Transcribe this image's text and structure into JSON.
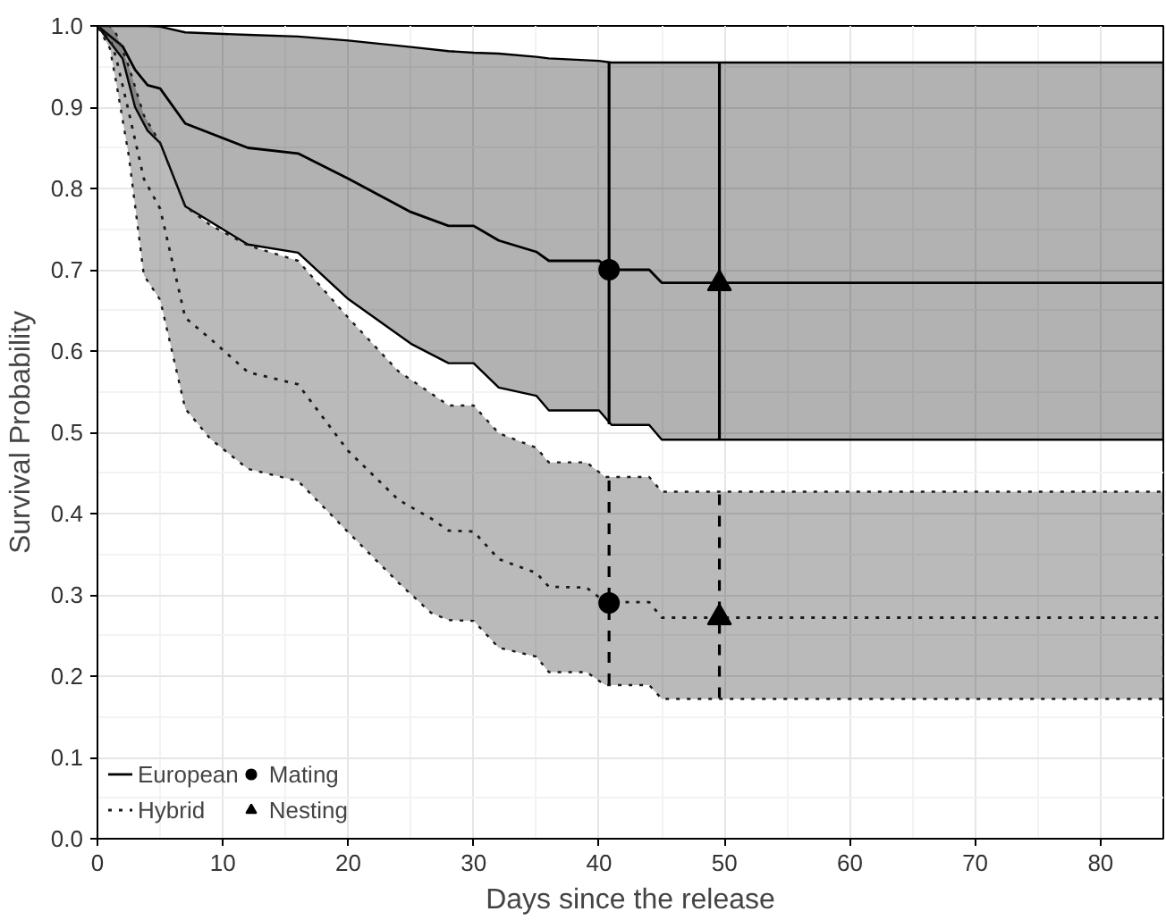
{
  "chart_data": {
    "type": "line",
    "xlabel": "Days since the release",
    "ylabel": "Survival Probability",
    "xlim": [
      0,
      85
    ],
    "ylim": [
      0,
      1.0
    ],
    "xticks": [
      0,
      10,
      20,
      30,
      40,
      50,
      60,
      70,
      80
    ],
    "yticks": [
      {
        "value": 0,
        "label": "0.0"
      },
      0.1,
      0.2,
      0.3,
      0.4,
      0.5,
      0.6,
      0.7,
      0.8,
      0.9,
      {
        "value": 1,
        "label": "1.0"
      }
    ],
    "grid": true,
    "legend": "bottom left",
    "series": [
      {
        "name": "European",
        "color": "#000000",
        "line_style": "solid",
        "x": [
          0,
          2,
          3,
          4,
          5,
          7,
          12,
          16,
          20,
          25,
          28,
          30,
          32,
          35,
          36,
          40,
          41,
          44,
          45,
          85
        ],
        "values": [
          1.0,
          0.975,
          0.946,
          0.927,
          0.923,
          0.88,
          0.85,
          0.843,
          0.812,
          0.771,
          0.754,
          0.754,
          0.736,
          0.722,
          0.711,
          0.711,
          0.7,
          0.7,
          0.684,
          0.684
        ],
        "upper": [
          1.0,
          1.0,
          1.0,
          1.0,
          0.999,
          0.992,
          0.989,
          0.987,
          0.982,
          0.974,
          0.969,
          0.967,
          0.966,
          0.962,
          0.96,
          0.957,
          0.955,
          0.955,
          0.955,
          0.955
        ],
        "lower": [
          1.0,
          0.96,
          0.9,
          0.871,
          0.856,
          0.778,
          0.731,
          0.721,
          0.664,
          0.609,
          0.585,
          0.585,
          0.555,
          0.545,
          0.527,
          0.527,
          0.509,
          0.509,
          0.491,
          0.491
        ]
      },
      {
        "name": "Hybrid",
        "color": "#1a1a1a",
        "line_style": "dotted",
        "x": [
          0,
          1,
          1.5,
          2.5,
          3.7,
          5,
          7,
          9,
          12,
          16,
          20,
          24,
          26.6,
          28,
          30,
          32,
          35,
          36,
          39,
          40.5,
          44,
          45,
          85
        ],
        "values": [
          1.0,
          0.985,
          0.96,
          0.894,
          0.812,
          0.775,
          0.641,
          0.615,
          0.574,
          0.559,
          0.477,
          0.417,
          0.394,
          0.379,
          0.378,
          0.344,
          0.327,
          0.31,
          0.309,
          0.291,
          0.291,
          0.272,
          0.272
        ],
        "upper": [
          1.0,
          1.0,
          0.99,
          0.95,
          0.89,
          0.856,
          0.778,
          0.755,
          0.73,
          0.711,
          0.641,
          0.575,
          0.548,
          0.533,
          0.533,
          0.499,
          0.481,
          0.463,
          0.463,
          0.445,
          0.445,
          0.427,
          0.427
        ],
        "lower": [
          1.0,
          0.972,
          0.93,
          0.84,
          0.693,
          0.663,
          0.529,
          0.492,
          0.455,
          0.44,
          0.377,
          0.315,
          0.278,
          0.269,
          0.268,
          0.235,
          0.224,
          0.205,
          0.205,
          0.189,
          0.189,
          0.172,
          0.172
        ]
      },
      {
        "name": "Mating",
        "type": "scatter",
        "marker": "circle",
        "color": "#000000",
        "line_style": [
          "solid",
          "dashed"
        ],
        "x": [
          40.8,
          40.8
        ],
        "values": [
          0.7,
          0.29
        ],
        "errors": [
          [
            0.51,
            0.955
          ],
          [
            0.19,
            0.445
          ]
        ]
      },
      {
        "name": "Nesting",
        "type": "scatter",
        "marker": "triangle",
        "color": "#000000",
        "line_style": [
          "solid",
          "dashed"
        ],
        "x": [
          49.6,
          49.6
        ],
        "values": [
          0.683,
          0.272
        ],
        "errors": [
          [
            0.49,
            0.955
          ],
          [
            0.173,
            0.425
          ]
        ]
      }
    ]
  }
}
